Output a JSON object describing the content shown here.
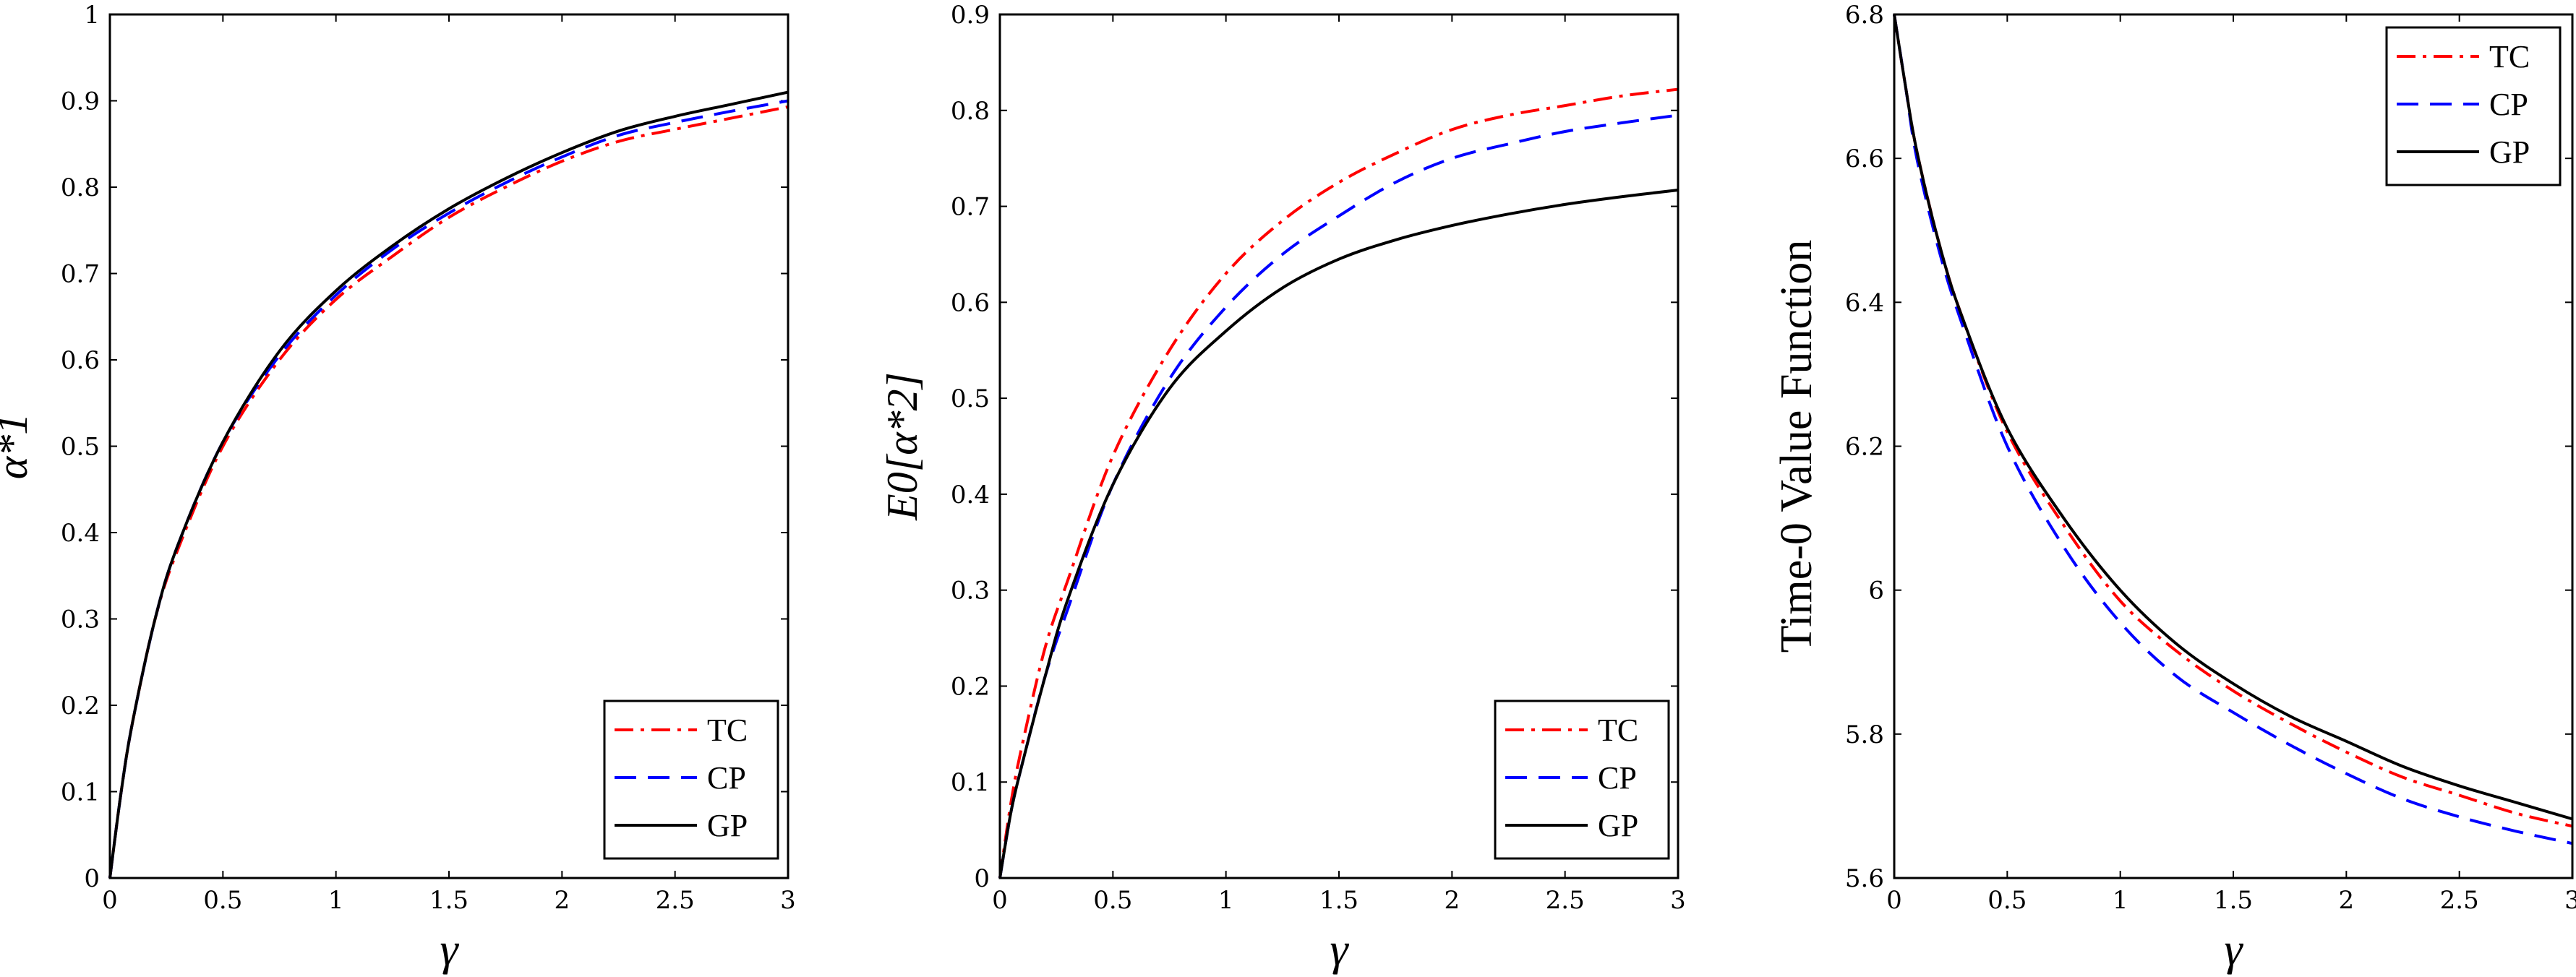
{
  "series_styles": {
    "TC": {
      "color": "#ff0000",
      "dash": "26 10 5 10"
    },
    "CP": {
      "color": "#0000ff",
      "dash": "30 16"
    },
    "GP": {
      "color": "#000000",
      "dash": ""
    }
  },
  "chart_data": [
    {
      "type": "line",
      "xlabel": "γ",
      "ylabel": "α*1",
      "xlim": [
        0,
        3
      ],
      "ylim": [
        0,
        1
      ],
      "xticks": [
        "0",
        "0.5",
        "1",
        "1.5",
        "2",
        "2.5",
        "3"
      ],
      "yticks": [
        "0",
        "0.1",
        "0.2",
        "0.3",
        "0.4",
        "0.5",
        "0.6",
        "0.7",
        "0.8",
        "0.9",
        "1"
      ],
      "legend": "bottom-right",
      "x": [
        0,
        0.05,
        0.1,
        0.2,
        0.3,
        0.5,
        0.75,
        1,
        1.25,
        1.5,
        1.75,
        2,
        2.25,
        2.5,
        2.75,
        3
      ],
      "series": [
        {
          "name": "TC",
          "values": [
            0,
            0.1,
            0.18,
            0.3,
            0.38,
            0.5,
            0.6,
            0.67,
            0.72,
            0.765,
            0.8,
            0.83,
            0.853,
            0.867,
            0.88,
            0.893
          ]
        },
        {
          "name": "CP",
          "values": [
            0,
            0.1,
            0.18,
            0.3,
            0.385,
            0.505,
            0.605,
            0.675,
            0.728,
            0.77,
            0.805,
            0.835,
            0.86,
            0.875,
            0.888,
            0.9
          ]
        },
        {
          "name": "GP",
          "values": [
            0,
            0.1,
            0.18,
            0.3,
            0.385,
            0.505,
            0.61,
            0.68,
            0.732,
            0.775,
            0.81,
            0.84,
            0.865,
            0.882,
            0.896,
            0.91
          ]
        }
      ]
    },
    {
      "type": "line",
      "xlabel": "γ",
      "ylabel": "E0[α*2]",
      "xlim": [
        0,
        3
      ],
      "ylim": [
        0,
        0.9
      ],
      "xticks": [
        "0",
        "0.5",
        "1",
        "1.5",
        "2",
        "2.5",
        "3"
      ],
      "yticks": [
        "0",
        "0.1",
        "0.2",
        "0.3",
        "0.4",
        "0.5",
        "0.6",
        "0.7",
        "0.8",
        "0.9"
      ],
      "legend": "bottom-right",
      "x": [
        0,
        0.05,
        0.1,
        0.2,
        0.3,
        0.5,
        0.75,
        1,
        1.25,
        1.5,
        1.75,
        2,
        2.25,
        2.5,
        2.75,
        3
      ],
      "series": [
        {
          "name": "TC",
          "values": [
            0,
            0.08,
            0.14,
            0.24,
            0.31,
            0.44,
            0.55,
            0.63,
            0.685,
            0.725,
            0.755,
            0.78,
            0.795,
            0.805,
            0.815,
            0.822
          ]
        },
        {
          "name": "CP",
          "values": [
            0,
            0.07,
            0.12,
            0.21,
            0.28,
            0.41,
            0.52,
            0.595,
            0.65,
            0.69,
            0.725,
            0.75,
            0.765,
            0.778,
            0.787,
            0.795
          ]
        },
        {
          "name": "GP",
          "values": [
            0,
            0.07,
            0.12,
            0.21,
            0.29,
            0.41,
            0.51,
            0.57,
            0.615,
            0.645,
            0.665,
            0.68,
            0.692,
            0.702,
            0.71,
            0.717
          ]
        }
      ]
    },
    {
      "type": "line",
      "xlabel": "γ",
      "ylabel": "Time-0 Value Function",
      "xlim": [
        0,
        3
      ],
      "ylim": [
        5.6,
        6.8
      ],
      "xticks": [
        "0",
        "0.5",
        "1",
        "1.5",
        "2",
        "2.5",
        "3"
      ],
      "yticks": [
        "5.6",
        "5.8",
        "6",
        "6.2",
        "6.4",
        "6.6",
        "6.8"
      ],
      "legend": "top-right",
      "x": [
        0,
        0.05,
        0.1,
        0.2,
        0.3,
        0.5,
        0.75,
        1,
        1.25,
        1.5,
        1.75,
        2,
        2.25,
        2.5,
        2.75,
        3
      ],
      "series": [
        {
          "name": "TC",
          "values": [
            6.8,
            6.7,
            6.61,
            6.48,
            6.38,
            6.22,
            6.09,
            5.985,
            5.915,
            5.86,
            5.815,
            5.775,
            5.74,
            5.715,
            5.69,
            5.672
          ]
        },
        {
          "name": "CP",
          "values": [
            6.8,
            6.7,
            6.6,
            6.47,
            6.37,
            6.2,
            6.06,
            5.955,
            5.88,
            5.83,
            5.785,
            5.745,
            5.71,
            5.685,
            5.665,
            5.648
          ]
        },
        {
          "name": "GP",
          "values": [
            6.8,
            6.7,
            6.61,
            6.48,
            6.38,
            6.225,
            6.1,
            6.0,
            5.925,
            5.87,
            5.825,
            5.79,
            5.755,
            5.728,
            5.705,
            5.682
          ]
        }
      ]
    }
  ]
}
